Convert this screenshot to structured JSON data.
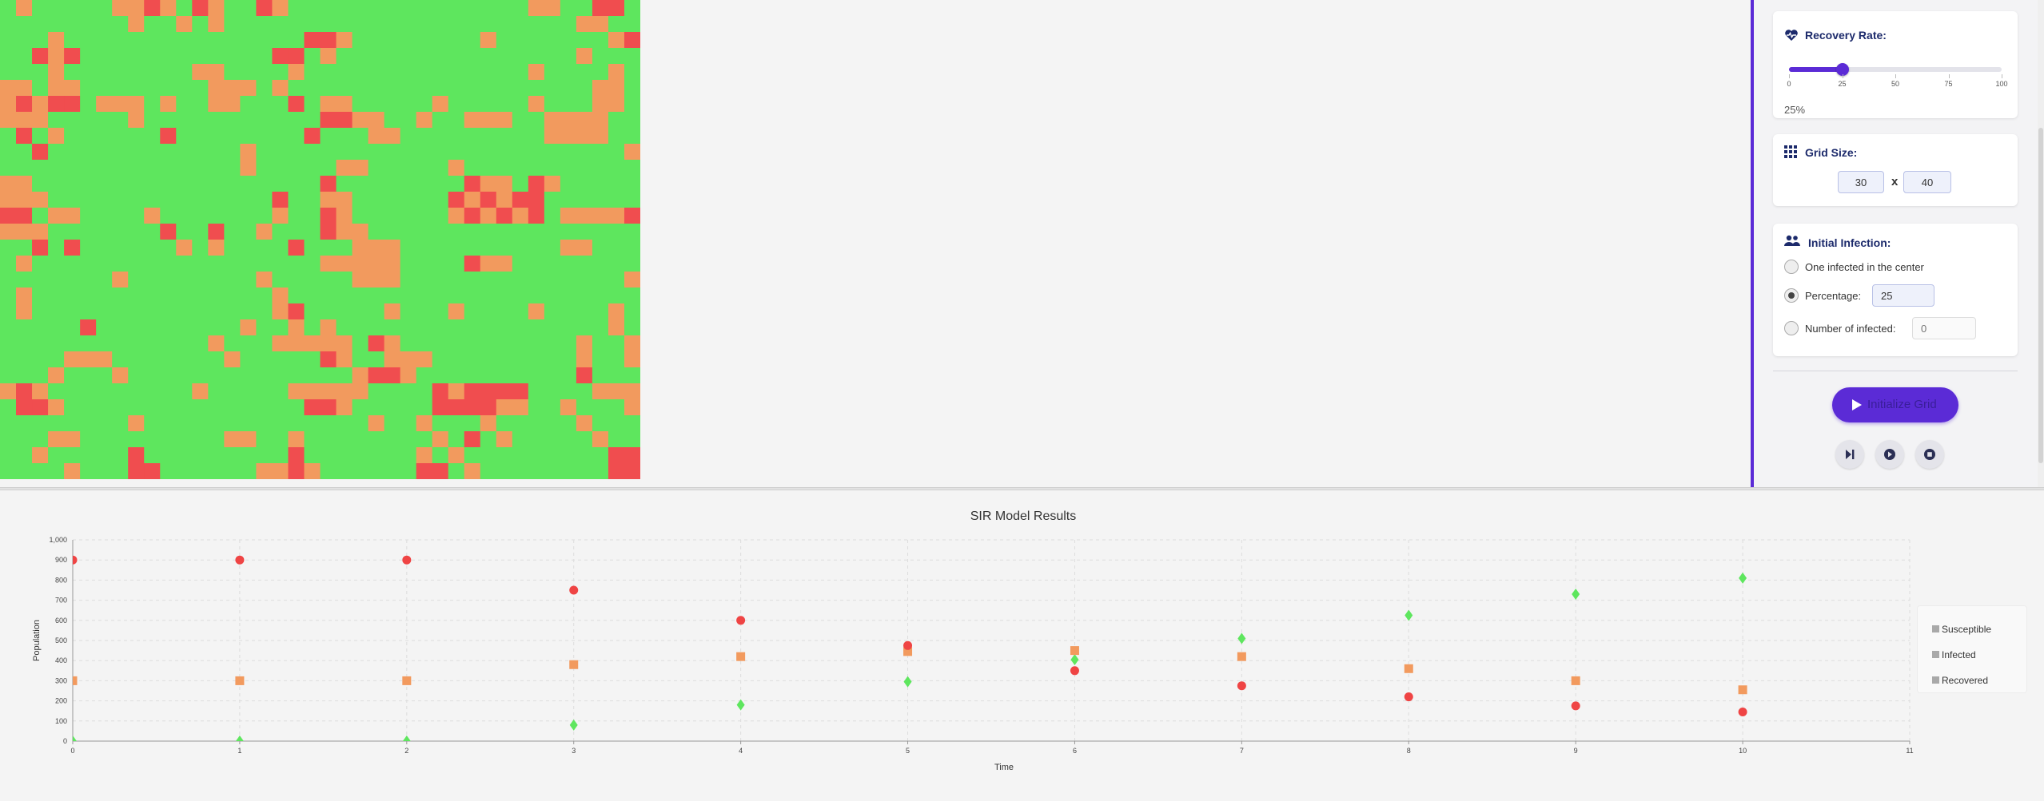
{
  "grid": {
    "rows": 30,
    "cols": 40,
    "colors": {
      "S": "#5ee65e",
      "I": "#f04d4f",
      "R": "#f29a5e"
    },
    "cells": [
      "SRSSSSSRRIRSIRSSIRSSSSSSSSSSSSSSSRRSSIIS",
      "SSSSSSSSRSSRSRSSSSSSSSSSSSSSSSSSSSSSRRSS",
      "SSSRSSSSSSSSSSSSSSSIIRSSSSSSSSRSSSSSSSRI",
      "SSIRISSSSSSSSSSSSIISRSSSSSSSSSSSSSSSRSSS",
      "SSSRSSSSSSSSRRSSSSRSSSSSSSSSSSSSSRSSSSRS",
      "RRSRRSSSSSSSSRRRSRSSSSSSSSSSSSSSSSSSSRRS",
      "RIRIISRRRSRSSRRSSSISRRSSSSSRSSSSSRSSSRRS",
      "RRRSSSSSRSSSSSSSSSSSIIRRSSRSSRRRSSRRRRSS",
      "SISRSSSSSSISSSSSSSSISSSRRSSSSSSSSSRRRRSS",
      "SSISSSSSSSSSSSSRSSSSSSSSSSSSSSSSSSSSSSSR",
      "SSSSSSSSSSSSSSSRSSSSSRRSSSSSRSSSSSSSSSSS",
      "RRSSSSSSSSSSSSSSSSSSISSSSSSSSIRRSIRSSSSS",
      "RRRSSSSSSSSSSSSSSISSRRSSSSSSIRIRIISSSSSS",
      "IISRRSSSSRSSSSSSSRSSIRSSSSSSRIRIRISRRRRI",
      "RRRSSSSSSSISSISSRSSSIRRSSSSSSSSSSSSSSSSS",
      "SSISISSSSSSRSRSSSSISSSRRRSSSSSSSSSSRRSSS",
      "SRSSSSSSSSSSSSSSSSSSRRRRRSSSSIRRSSSSSSSS",
      "SSSSSSSRSSSSSSSSRSSSSSRRRSSSSSSSSSSSSSSR",
      "SRSSSSSSSSSSSSSSSRSSSSSSSSSSSSSSSSSSSSSS",
      "SRSSSSSSSSSSSSSSSRISSSSSRSSSRSSSSRSSSSRS",
      "SSSSSISSSSSSSSSRSSRSRSSSSSSSSSSSSSSSSSRS",
      "SSSSSSSSSSSSSRSSSRRRRRSIRSSSSSSSSSSSRSSR",
      "SSSSRRRSSSSSSSRSSSSSIRSSRRRSSSSSSSSSRSSR",
      "SSSRSSSRSSSSSSSSSSSSSSRIIRSSSSSSSSSSISSS",
      "RIRSSSSSSSSSRSSSSSRRRRRSSSSIRIIIISSSSRRR",
      "SIIRSSSSSSSSSSSSSSSIIRSSSSSIIIIRRSSRSSSR",
      "SSSSSSSSRSSSSSSSSSSSSSSRSSRSSSRSSSSSRSSS",
      "SSSRRSSSSSSSSSRRSSRSSSSSSSSRSISRSSSSSRSS",
      "SSRSSSSSISSSSSSSSSISSSSSSSRSRSSSSSSSSSII",
      "SSSSRSSSIISSSSSSRRIRSSSSSSIISRSSSSSSSSII"
    ]
  },
  "panel": {
    "recovery": {
      "title": "Recovery Rate:",
      "value": 25,
      "value_text": "25%",
      "ticks": [
        "0",
        "25",
        "50",
        "75",
        "100"
      ]
    },
    "grid_size": {
      "title": "Grid Size:",
      "rows": "30",
      "times": "x",
      "cols": "40"
    },
    "initial_infection": {
      "title": "Initial Infection:",
      "options": [
        "One infected in the center",
        "Percentage:",
        "Number of infected:"
      ],
      "selected": 1,
      "percentage_value": "25",
      "number_placeholder": "0"
    },
    "init_button": "Initialize Grid",
    "accent": "#5b2bd6"
  },
  "chart_data": {
    "type": "scatter",
    "title": "SIR Model Results",
    "xlabel": "Time",
    "ylabel": "Population",
    "xlim": [
      0,
      11
    ],
    "ylim": [
      0,
      1000
    ],
    "x_ticks": [
      0,
      1,
      2,
      3,
      4,
      5,
      6,
      7,
      8,
      9,
      10,
      11
    ],
    "y_ticks": [
      0,
      100,
      200,
      300,
      400,
      500,
      600,
      700,
      800,
      900,
      1000
    ],
    "y_tick_labels": [
      "0",
      "100",
      "200",
      "300",
      "400",
      "500",
      "600",
      "700",
      "800",
      "900",
      "1,000"
    ],
    "grid": true,
    "legend_position": "right",
    "series": [
      {
        "name": "Susceptible",
        "color": "#ef4444",
        "marker": "circle",
        "x": [
          0,
          1,
          2,
          3,
          4,
          5,
          6,
          7,
          8,
          9,
          10
        ],
        "y": [
          900,
          900,
          900,
          750,
          600,
          475,
          350,
          275,
          220,
          175,
          145
        ]
      },
      {
        "name": "Infected",
        "color": "#f29a5e",
        "marker": "square",
        "x": [
          0,
          1,
          2,
          3,
          4,
          5,
          6,
          7,
          8,
          9,
          10
        ],
        "y": [
          300,
          300,
          300,
          380,
          420,
          445,
          450,
          420,
          360,
          300,
          255
        ]
      },
      {
        "name": "Recovered",
        "color": "#5ee65e",
        "marker": "diamond",
        "x": [
          0,
          1,
          2,
          3,
          4,
          5,
          6,
          7,
          8,
          9,
          10
        ],
        "y": [
          0,
          0,
          0,
          80,
          180,
          295,
          405,
          510,
          625,
          730,
          810
        ]
      }
    ]
  }
}
